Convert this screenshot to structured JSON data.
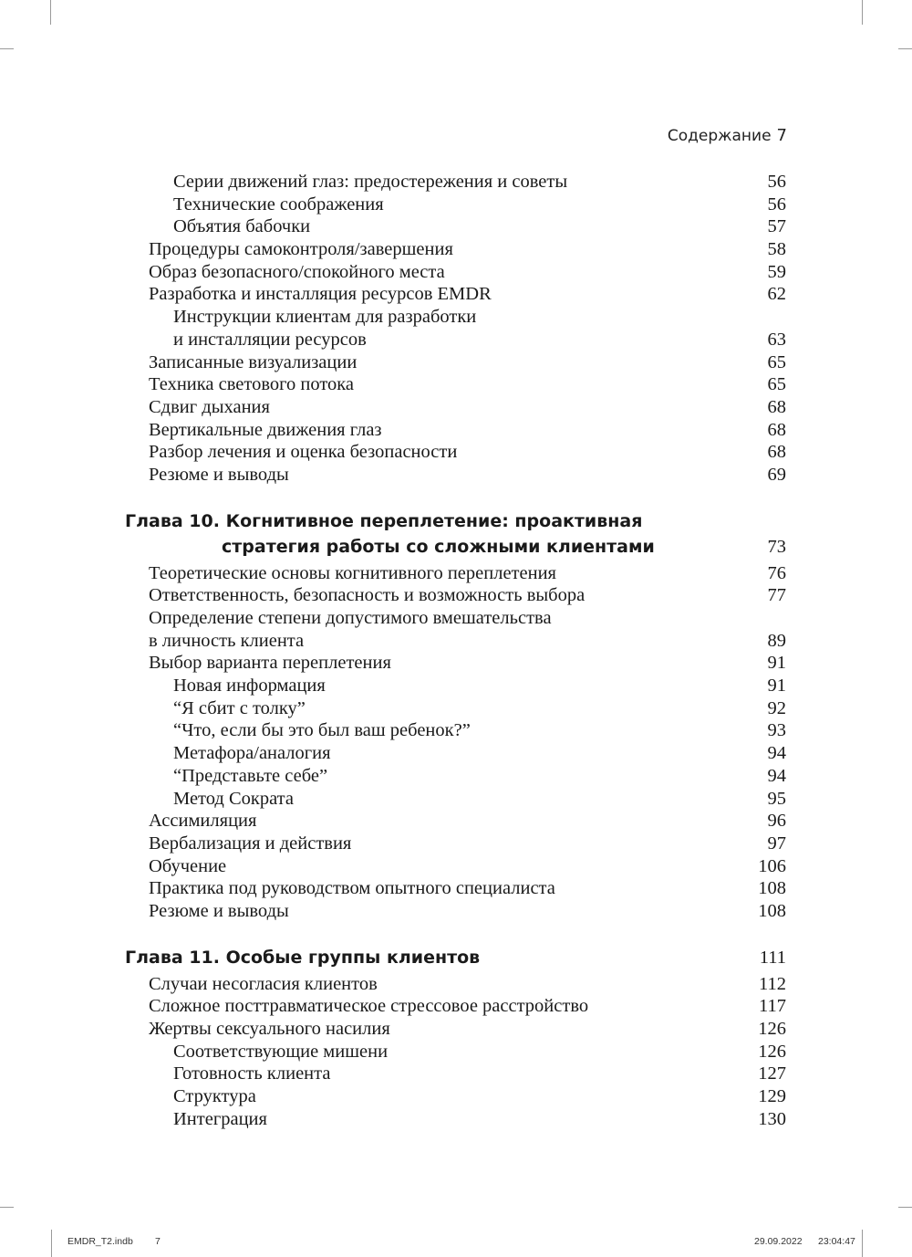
{
  "header": {
    "section": "Содержание",
    "page_number": "7"
  },
  "toc": [
    {
      "type": "entry",
      "level": 2,
      "lines": [
        "Серии движений глаз: предостережения и советы"
      ],
      "page": "56"
    },
    {
      "type": "entry",
      "level": 2,
      "lines": [
        "Технические соображения"
      ],
      "page": "56"
    },
    {
      "type": "entry",
      "level": 2,
      "lines": [
        "Объятия бабочки"
      ],
      "page": "57"
    },
    {
      "type": "entry",
      "level": 1,
      "lines": [
        "Процедуры самоконтроля/завершения"
      ],
      "page": "58"
    },
    {
      "type": "entry",
      "level": 1,
      "lines": [
        "Образ безопасного/спокойного места"
      ],
      "page": "59"
    },
    {
      "type": "entry",
      "level": 1,
      "lines": [
        "Разработка и инсталляция ресурсов EMDR"
      ],
      "page": "62"
    },
    {
      "type": "entry",
      "level": 2,
      "lines": [
        "Инструкции клиентам для разработки",
        "и инсталляции ресурсов"
      ],
      "page": "63"
    },
    {
      "type": "entry",
      "level": 1,
      "lines": [
        "Записанные визуализации"
      ],
      "page": "65"
    },
    {
      "type": "entry",
      "level": 1,
      "lines": [
        "Техника светового потока"
      ],
      "page": "65"
    },
    {
      "type": "entry",
      "level": 1,
      "lines": [
        "Сдвиг дыхания"
      ],
      "page": "68"
    },
    {
      "type": "entry",
      "level": 1,
      "lines": [
        "Вертикальные движения глаз"
      ],
      "page": "68"
    },
    {
      "type": "entry",
      "level": 1,
      "lines": [
        "Разбор лечения и оценка безопасности"
      ],
      "page": "68"
    },
    {
      "type": "entry",
      "level": 1,
      "lines": [
        "Резюме и выводы"
      ],
      "page": "69"
    },
    {
      "type": "chapter",
      "lines": [
        "Глава  10. Когнитивное переплетение: проактивная",
        "стратегия работы со сложными клиентами"
      ],
      "page": "73"
    },
    {
      "type": "entry",
      "level": 1,
      "lines": [
        "Теоретические основы когнитивного переплетения"
      ],
      "page": "76"
    },
    {
      "type": "entry",
      "level": 1,
      "lines": [
        "Ответственность, безопасность и возможность выбора"
      ],
      "page": "77"
    },
    {
      "type": "entry",
      "level": 1,
      "lines": [
        "Определение степени допустимого вмешательства",
        "в личность клиента"
      ],
      "page": "89"
    },
    {
      "type": "entry",
      "level": 1,
      "lines": [
        "Выбор варианта переплетения"
      ],
      "page": "91"
    },
    {
      "type": "entry",
      "level": 2,
      "lines": [
        "Новая информация"
      ],
      "page": "91"
    },
    {
      "type": "entry",
      "level": 2,
      "lines": [
        "“Я сбит с толку”"
      ],
      "page": "92"
    },
    {
      "type": "entry",
      "level": 2,
      "lines": [
        "“Что, если бы это был ваш ребенок?”"
      ],
      "page": "93"
    },
    {
      "type": "entry",
      "level": 2,
      "lines": [
        "Метафора/аналогия"
      ],
      "page": "94"
    },
    {
      "type": "entry",
      "level": 2,
      "lines": [
        "“Представьте себе”"
      ],
      "page": "94"
    },
    {
      "type": "entry",
      "level": 2,
      "lines": [
        "Метод Сократа"
      ],
      "page": "95"
    },
    {
      "type": "entry",
      "level": 1,
      "lines": [
        "Ассимиляция"
      ],
      "page": "96"
    },
    {
      "type": "entry",
      "level": 1,
      "lines": [
        "Вербализация и действия"
      ],
      "page": "97"
    },
    {
      "type": "entry",
      "level": 1,
      "lines": [
        "Обучение"
      ],
      "page": "106"
    },
    {
      "type": "entry",
      "level": 1,
      "lines": [
        "Практика под руководством опытного специалиста"
      ],
      "page": "108"
    },
    {
      "type": "entry",
      "level": 1,
      "lines": [
        "Резюме и выводы"
      ],
      "page": "108"
    },
    {
      "type": "chapter",
      "lines": [
        "Глава  11. Особые группы клиентов"
      ],
      "page": "111"
    },
    {
      "type": "entry",
      "level": 1,
      "lines": [
        "Случаи несогласия клиентов"
      ],
      "page": "112"
    },
    {
      "type": "entry",
      "level": 1,
      "lines": [
        "Сложное посттравматическое стрессовое расстройство"
      ],
      "page": "117"
    },
    {
      "type": "entry",
      "level": 1,
      "lines": [
        "Жертвы сексуального насилия"
      ],
      "page": "126"
    },
    {
      "type": "entry",
      "level": 2,
      "lines": [
        "Соответствующие мишени"
      ],
      "page": "126"
    },
    {
      "type": "entry",
      "level": 2,
      "lines": [
        "Готовность клиента"
      ],
      "page": "127"
    },
    {
      "type": "entry",
      "level": 2,
      "lines": [
        "Структура"
      ],
      "page": "129"
    },
    {
      "type": "entry",
      "level": 2,
      "lines": [
        "Интеграция"
      ],
      "page": "130"
    }
  ],
  "footer": {
    "file": "EMDR_T2.indb",
    "page": "7",
    "date": "29.09.2022",
    "time": "23:04:47"
  }
}
